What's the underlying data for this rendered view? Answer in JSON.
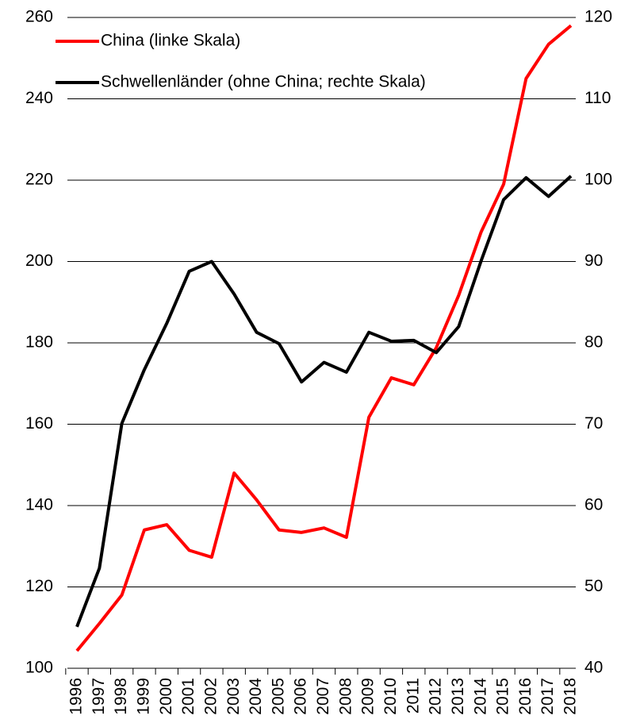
{
  "chart_data": {
    "type": "line",
    "categories": [
      "1996",
      "1997",
      "1998",
      "1999",
      "2000",
      "2001",
      "2002",
      "2003",
      "2004",
      "2005",
      "2006",
      "2007",
      "2008",
      "2009",
      "2010",
      "2011",
      "2012",
      "2013",
      "2014",
      "2015",
      "2016",
      "2017",
      "2018"
    ],
    "series": [
      {
        "name": "China (linke Skala)",
        "color": "#ff0000",
        "axis": "y",
        "values": [
          104.3,
          111,
          118,
          134,
          135.3,
          129,
          127.3,
          148,
          141.4,
          134,
          133.4,
          134.5,
          132.2,
          161.7,
          171.4,
          169.7,
          178.8,
          191.7,
          207.3,
          219,
          245,
          253.4,
          258
        ]
      },
      {
        "name": "Schwellenländer (ohne China; rechte Skala)",
        "color": "#000000",
        "axis": "y2",
        "values": [
          45.1,
          52.3,
          70.1,
          76.7,
          82.4,
          88.8,
          90,
          86,
          81.3,
          79.9,
          75.2,
          77.6,
          76.4,
          81.3,
          80.2,
          80.3,
          78.8,
          82,
          90.1,
          97.6,
          100.3,
          98,
          100.5
        ]
      }
    ],
    "ylim": [
      100,
      260
    ],
    "yticks": [
      100,
      120,
      140,
      160,
      180,
      200,
      220,
      240,
      260
    ],
    "y2lim": [
      40,
      120
    ],
    "y2ticks": [
      40,
      50,
      60,
      70,
      80,
      90,
      100,
      110,
      120
    ],
    "grid": true,
    "legend": "top-left"
  }
}
